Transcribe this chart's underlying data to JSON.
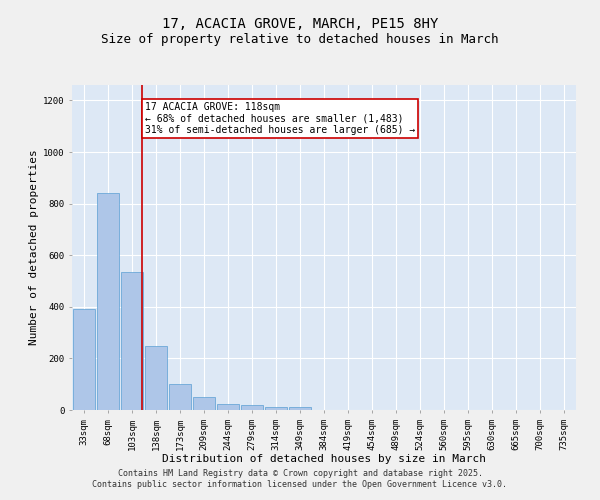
{
  "title_line1": "17, ACACIA GROVE, MARCH, PE15 8HY",
  "title_line2": "Size of property relative to detached houses in March",
  "xlabel": "Distribution of detached houses by size in March",
  "ylabel": "Number of detached properties",
  "categories": [
    "33sqm",
    "68sqm",
    "103sqm",
    "138sqm",
    "173sqm",
    "209sqm",
    "244sqm",
    "279sqm",
    "314sqm",
    "349sqm",
    "384sqm",
    "419sqm",
    "454sqm",
    "489sqm",
    "524sqm",
    "560sqm",
    "595sqm",
    "630sqm",
    "665sqm",
    "700sqm",
    "735sqm"
  ],
  "values": [
    390,
    840,
    535,
    248,
    100,
    52,
    22,
    18,
    13,
    10,
    0,
    0,
    0,
    0,
    0,
    0,
    0,
    0,
    0,
    0,
    0
  ],
  "bar_color": "#aec6e8",
  "bar_edge_color": "#5a9fd4",
  "property_line_x": 2.43,
  "annotation_text": "17 ACACIA GROVE: 118sqm\n← 68% of detached houses are smaller (1,483)\n31% of semi-detached houses are larger (685) →",
  "annotation_box_color": "#ffffff",
  "annotation_box_edge": "#cc0000",
  "vline_color": "#cc0000",
  "ylim": [
    0,
    1260
  ],
  "yticks": [
    0,
    200,
    400,
    600,
    800,
    1000,
    1200
  ],
  "background_color": "#dde8f5",
  "grid_color": "#ffffff",
  "footer_line1": "Contains HM Land Registry data © Crown copyright and database right 2025.",
  "footer_line2": "Contains public sector information licensed under the Open Government Licence v3.0.",
  "title_fontsize": 10,
  "subtitle_fontsize": 9,
  "axis_label_fontsize": 8,
  "tick_fontsize": 6.5,
  "annotation_fontsize": 7,
  "footer_fontsize": 6
}
